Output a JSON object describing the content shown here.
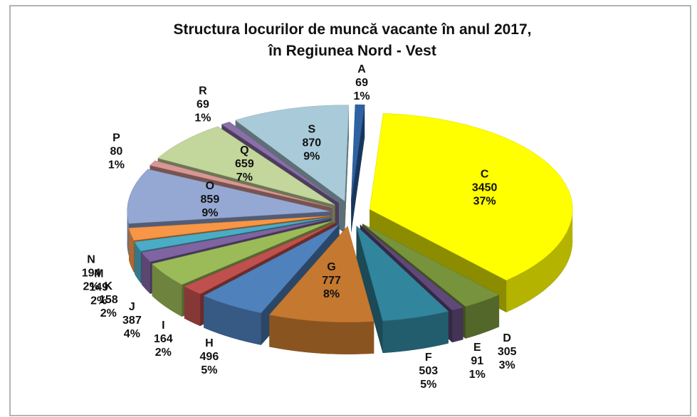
{
  "chart_data": {
    "type": "pie3d",
    "title": [
      "Structura locurilor de muncă vacante în anul 2017,",
      "în Regiunea Nord - Vest"
    ],
    "categories": [
      "A",
      "C",
      "D",
      "E",
      "F",
      "G",
      "H",
      "I",
      "J",
      "K",
      "M",
      "N",
      "O",
      "P",
      "Q",
      "R",
      "S"
    ],
    "values": [
      69,
      3450,
      305,
      91,
      503,
      777,
      496,
      164,
      387,
      158,
      149,
      194,
      859,
      80,
      659,
      69,
      870
    ],
    "percents": [
      1,
      37,
      3,
      1,
      5,
      8,
      5,
      2,
      4,
      2,
      2,
      2,
      9,
      1,
      7,
      1,
      9
    ],
    "percent_labels": [
      "1%",
      "37%",
      "3%",
      "1%",
      "5%",
      "8%",
      "5%",
      "2%",
      "4%",
      "2%",
      "2%",
      "2%",
      "9%",
      "1%",
      "7%",
      "1%",
      "9%"
    ],
    "colors": [
      "#2e62a3",
      "#ffff00",
      "#77933c",
      "#5f497a",
      "#31859c",
      "#c5782f",
      "#4f81bd",
      "#c0504d",
      "#9bbb59",
      "#8064a2",
      "#4bacc6",
      "#f79646",
      "#95a8d4",
      "#d99694",
      "#c3d69b",
      "#8a6fa8",
      "#a9cbd9"
    ]
  }
}
